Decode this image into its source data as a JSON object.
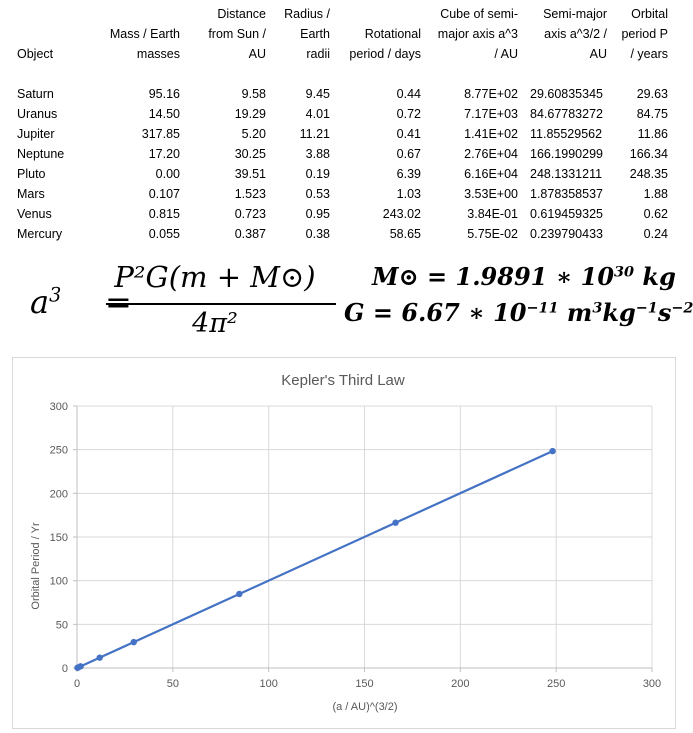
{
  "table": {
    "headers": {
      "object": [
        "Object"
      ],
      "mass": [
        "Mass / Earth",
        "masses"
      ],
      "distance": [
        "Distance",
        "from Sun /",
        "AU"
      ],
      "radius": [
        "Radius /",
        "Earth",
        "radii"
      ],
      "rotation": [
        "Rotational",
        "period / days"
      ],
      "cube": [
        "Cube of semi-",
        "major axis a^3",
        "/ AU"
      ],
      "semimajor": [
        "Semi-major",
        "axis a^3/2 /",
        "AU"
      ],
      "orbital": [
        "Orbital",
        "period P",
        "/ years"
      ]
    },
    "rows": [
      {
        "object": "Saturn",
        "mass": "95.16",
        "distance": "9.58",
        "radius": "9.45",
        "rotation": "0.44",
        "cube": "8.77E+02",
        "semimajor": "29.60835345",
        "orbital": "29.63"
      },
      {
        "object": "Uranus",
        "mass": "14.50",
        "distance": "19.29",
        "radius": "4.01",
        "rotation": "0.72",
        "cube": "7.17E+03",
        "semimajor": "84.67783272",
        "orbital": "84.75"
      },
      {
        "object": "Jupiter",
        "mass": "317.85",
        "distance": "5.20",
        "radius": "11.21",
        "rotation": "0.41",
        "cube": "1.41E+02",
        "semimajor": "11.85529562",
        "orbital": "11.86"
      },
      {
        "object": "Neptune",
        "mass": "17.20",
        "distance": "30.25",
        "radius": "3.88",
        "rotation": "0.67",
        "cube": "2.76E+04",
        "semimajor": "166.1990299",
        "orbital": "166.34"
      },
      {
        "object": "Pluto",
        "mass": "0.00",
        "distance": "39.51",
        "radius": "0.19",
        "rotation": "6.39",
        "cube": "6.16E+04",
        "semimajor": "248.1331211",
        "orbital": "248.35"
      },
      {
        "object": "Mars",
        "mass": "0.107",
        "distance": "1.523",
        "radius": "0.53",
        "rotation": "1.03",
        "cube": "3.53E+00",
        "semimajor": "1.878358537",
        "orbital": "1.88"
      },
      {
        "object": "Venus",
        "mass": "0.815",
        "distance": "0.723",
        "radius": "0.95",
        "rotation": "243.02",
        "cube": "3.84E-01",
        "semimajor": "0.619459325",
        "orbital": "0.62"
      },
      {
        "object": "Mercury",
        "mass": "0.055",
        "distance": "0.387",
        "radius": "0.38",
        "rotation": "58.65",
        "cube": "5.75E-02",
        "semimajor": "0.239790433",
        "orbital": "0.24"
      }
    ]
  },
  "formulas": {
    "kepler": {
      "lhs_base": "a",
      "lhs_exp": "3",
      "equals": "=",
      "numerator": "P²G(m + M⊙)",
      "denominator": "4π²"
    },
    "sun_mass": {
      "text": "M⊙ = 1.9891 ∗ 10",
      "exp": "30",
      "unit": " kg"
    },
    "grav_const": {
      "text": "G = 6.67 ∗ 10",
      "exp": "−11",
      "unit1": " m",
      "unit1_exp": "3",
      "unit2": "kg",
      "unit2_exp": "−1",
      "unit3": "s",
      "unit3_exp": "−2"
    }
  },
  "chart_data": {
    "type": "scatter",
    "title": "Kepler's Third Law",
    "xlabel": "(a / AU)^(3/2)",
    "ylabel": "Orbital Period / Yr",
    "xlim": [
      0,
      300
    ],
    "ylim": [
      0,
      300
    ],
    "xticks": [
      0,
      50,
      100,
      150,
      200,
      250,
      300
    ],
    "yticks": [
      0,
      50,
      100,
      150,
      200,
      250,
      300
    ],
    "grid": true,
    "connected": true,
    "series": [
      {
        "color": "#4472c4",
        "points": [
          {
            "x": 29.60835345,
            "y": 29.63
          },
          {
            "x": 84.67783272,
            "y": 84.75
          },
          {
            "x": 11.85529562,
            "y": 11.86
          },
          {
            "x": 166.1990299,
            "y": 166.34
          },
          {
            "x": 248.1331211,
            "y": 248.35
          },
          {
            "x": 1.878358537,
            "y": 1.88
          },
          {
            "x": 0.619459325,
            "y": 0.62
          },
          {
            "x": 0.239790433,
            "y": 0.24
          }
        ]
      }
    ]
  }
}
